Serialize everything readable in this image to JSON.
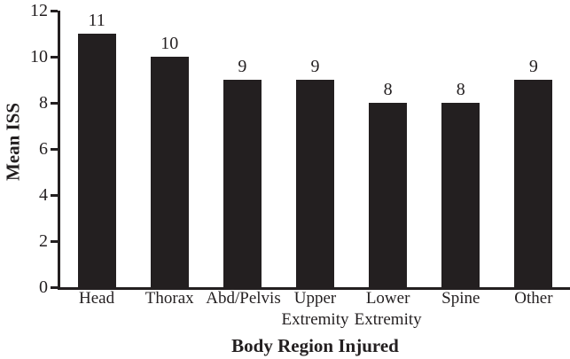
{
  "figure": {
    "background": "#ffffff"
  },
  "chart_data": {
    "type": "bar",
    "xlabel": "Body Region Injured",
    "ylabel": "Mean ISS",
    "categories": [
      "Head",
      "Thorax",
      "Abd/Pelvis",
      "Upper Extremity",
      "Lower Extremity",
      "Spine",
      "Other"
    ],
    "categories_lines": [
      [
        "Head"
      ],
      [
        "Thorax"
      ],
      [
        "Abd/Pelvis"
      ],
      [
        "Upper",
        "Extremity"
      ],
      [
        "Lower",
        "Extremity"
      ],
      [
        "Spine"
      ],
      [
        "Other"
      ]
    ],
    "values": [
      11,
      10,
      9,
      9,
      8,
      8,
      9
    ],
    "bar_labels": [
      "11",
      "10",
      "9",
      "9",
      "8",
      "8",
      "9"
    ],
    "yticks": [
      0,
      2,
      4,
      6,
      8,
      10,
      12
    ],
    "ylim": [
      0,
      12
    ],
    "bar_color": "#231f20",
    "axis_color": "#231f20",
    "text_color": "#231f20",
    "grid": false,
    "legend": "none"
  }
}
